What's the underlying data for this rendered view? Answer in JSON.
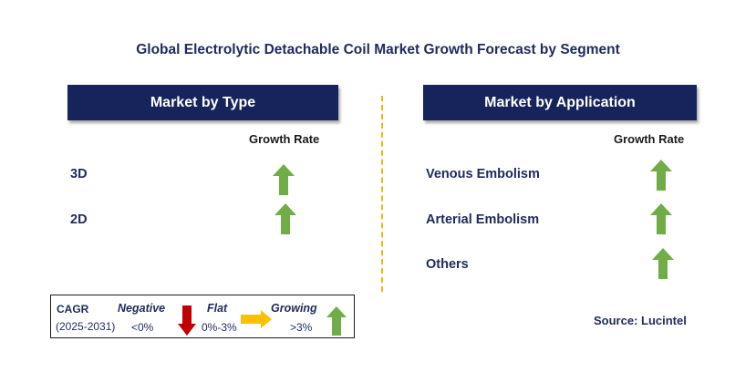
{
  "title": "Global Electrolytic Detachable Coil Market Growth Forecast by Segment",
  "colors": {
    "header_bg": "#16245b",
    "growing": "#70ad47",
    "negative": "#c00000",
    "flat": "#ffc000",
    "divider": "#f2b705"
  },
  "type_panel": {
    "header": "Market by Type",
    "growth_rate_label": "Growth Rate",
    "rows": [
      {
        "label": "3D",
        "trend": "growing"
      },
      {
        "label": "2D",
        "trend": "growing"
      }
    ]
  },
  "application_panel": {
    "header": "Market by Application",
    "growth_rate_label": "Growth Rate",
    "rows": [
      {
        "label": "Venous Embolism",
        "trend": "growing"
      },
      {
        "label": "Arterial Embolism",
        "trend": "growing"
      },
      {
        "label": "Others",
        "trend": "growing"
      }
    ]
  },
  "legend": {
    "cagr_label": "CAGR",
    "period": "(2025-2031)",
    "negative": {
      "label": "Negative",
      "range": "<0%",
      "icon": "down-arrow-icon"
    },
    "flat": {
      "label": "Flat",
      "range": "0%-3%",
      "icon": "right-arrow-icon"
    },
    "growing": {
      "label": "Growing",
      "range": ">3%",
      "icon": "up-arrow-icon"
    }
  },
  "source": "Source: Lucintel"
}
